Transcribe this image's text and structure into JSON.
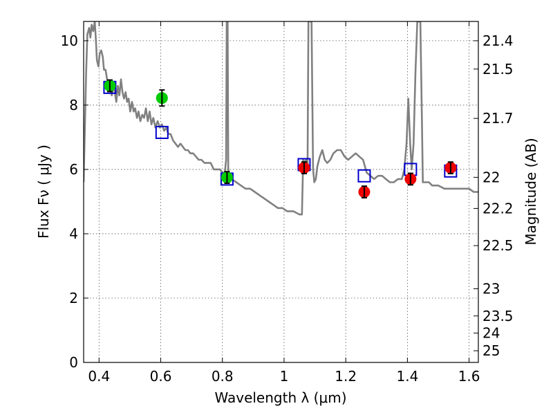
{
  "chart_data": {
    "type": "scatter",
    "xlabel": "Wavelength  λ (μm)",
    "ylabel": "Flux  Fν  ( μJy )",
    "ylabel_right": "Magnitude (AB)",
    "xlim": [
      0.35,
      1.63
    ],
    "ylim": [
      0,
      10.6
    ],
    "grid": true,
    "x_ticks": [
      "0.4",
      "0.6",
      "0.8",
      "1",
      "1.2",
      "1.4",
      "1.6"
    ],
    "x_tick_values": [
      0.4,
      0.6,
      0.8,
      1.0,
      1.2,
      1.4,
      1.6
    ],
    "y_ticks": [
      "0",
      "2",
      "4",
      "6",
      "8",
      "10"
    ],
    "y_tick_values": [
      0,
      2,
      4,
      6,
      8,
      10
    ],
    "mag_ticks": [
      "21.4",
      "21.5",
      "21.7",
      "22",
      "22.2",
      "22.5",
      "23",
      "23.5",
      "24",
      "25"
    ],
    "mag_tick_values": [
      21.4,
      21.5,
      21.7,
      22.0,
      22.2,
      22.5,
      23.0,
      23.5,
      24.0,
      25.0
    ],
    "model_line": {
      "color": "#808080",
      "points": [
        [
          0.35,
          5.6
        ],
        [
          0.358,
          9.0
        ],
        [
          0.362,
          10.2
        ],
        [
          0.368,
          10.4
        ],
        [
          0.372,
          10.1
        ],
        [
          0.376,
          10.5
        ],
        [
          0.381,
          10.3
        ],
        [
          0.386,
          10.6
        ],
        [
          0.39,
          10.0
        ],
        [
          0.393,
          9.4
        ],
        [
          0.398,
          9.2
        ],
        [
          0.402,
          9.6
        ],
        [
          0.407,
          9.7
        ],
        [
          0.412,
          9.5
        ],
        [
          0.416,
          9.1
        ],
        [
          0.421,
          9.1
        ],
        [
          0.426,
          8.8
        ],
        [
          0.431,
          8.5
        ],
        [
          0.436,
          8.7
        ],
        [
          0.441,
          8.3
        ],
        [
          0.446,
          8.6
        ],
        [
          0.451,
          8.4
        ],
        [
          0.456,
          8.1
        ],
        [
          0.461,
          8.6
        ],
        [
          0.466,
          8.3
        ],
        [
          0.471,
          8.8
        ],
        [
          0.476,
          8.4
        ],
        [
          0.481,
          8.2
        ],
        [
          0.486,
          8.4
        ],
        [
          0.491,
          8.1
        ],
        [
          0.496,
          8.2
        ],
        [
          0.501,
          7.8
        ],
        [
          0.507,
          8.1
        ],
        [
          0.512,
          7.8
        ],
        [
          0.517,
          7.9
        ],
        [
          0.523,
          7.6
        ],
        [
          0.528,
          7.8
        ],
        [
          0.534,
          7.5
        ],
        [
          0.54,
          7.7
        ],
        [
          0.546,
          7.6
        ],
        [
          0.552,
          7.9
        ],
        [
          0.558,
          7.5
        ],
        [
          0.564,
          7.8
        ],
        [
          0.57,
          7.4
        ],
        [
          0.576,
          7.6
        ],
        [
          0.583,
          7.3
        ],
        [
          0.59,
          7.5
        ],
        [
          0.597,
          7.3
        ],
        [
          0.604,
          7.4
        ],
        [
          0.611,
          7.2
        ],
        [
          0.618,
          7.3
        ],
        [
          0.625,
          7.1
        ],
        [
          0.632,
          7.1
        ],
        [
          0.64,
          6.9
        ],
        [
          0.648,
          6.8
        ],
        [
          0.656,
          6.7
        ],
        [
          0.664,
          6.8
        ],
        [
          0.672,
          6.7
        ],
        [
          0.68,
          6.6
        ],
        [
          0.688,
          6.6
        ],
        [
          0.696,
          6.5
        ],
        [
          0.705,
          6.5
        ],
        [
          0.714,
          6.4
        ],
        [
          0.723,
          6.3
        ],
        [
          0.732,
          6.3
        ],
        [
          0.742,
          6.2
        ],
        [
          0.752,
          6.2
        ],
        [
          0.762,
          6.2
        ],
        [
          0.772,
          6.0
        ],
        [
          0.782,
          6.0
        ],
        [
          0.792,
          6.0
        ],
        [
          0.8,
          5.9
        ],
        [
          0.808,
          5.9
        ],
        [
          0.812,
          6.3
        ],
        [
          0.814,
          10.6
        ],
        [
          0.817,
          10.6
        ],
        [
          0.819,
          6.0
        ],
        [
          0.823,
          5.8
        ],
        [
          0.83,
          5.7
        ],
        [
          0.845,
          5.6
        ],
        [
          0.86,
          5.5
        ],
        [
          0.875,
          5.4
        ],
        [
          0.89,
          5.4
        ],
        [
          0.905,
          5.3
        ],
        [
          0.92,
          5.2
        ],
        [
          0.935,
          5.1
        ],
        [
          0.95,
          5.0
        ],
        [
          0.965,
          4.9
        ],
        [
          0.98,
          4.8
        ],
        [
          0.995,
          4.8
        ],
        [
          1.01,
          4.7
        ],
        [
          1.03,
          4.7
        ],
        [
          1.05,
          4.6
        ],
        [
          1.058,
          4.6
        ],
        [
          1.062,
          6.3
        ],
        [
          1.066,
          6.2
        ],
        [
          1.071,
          6.3
        ],
        [
          1.076,
          6.0
        ],
        [
          1.079,
          10.6
        ],
        [
          1.089,
          10.6
        ],
        [
          1.094,
          6.0
        ],
        [
          1.098,
          5.6
        ],
        [
          1.103,
          5.7
        ],
        [
          1.108,
          6.1
        ],
        [
          1.116,
          6.4
        ],
        [
          1.124,
          6.6
        ],
        [
          1.132,
          6.3
        ],
        [
          1.14,
          6.2
        ],
        [
          1.15,
          6.3
        ],
        [
          1.16,
          6.5
        ],
        [
          1.172,
          6.6
        ],
        [
          1.184,
          6.6
        ],
        [
          1.196,
          6.4
        ],
        [
          1.208,
          6.3
        ],
        [
          1.22,
          6.4
        ],
        [
          1.232,
          6.5
        ],
        [
          1.244,
          6.4
        ],
        [
          1.256,
          6.3
        ],
        [
          1.268,
          5.9
        ],
        [
          1.28,
          5.8
        ],
        [
          1.292,
          5.7
        ],
        [
          1.305,
          5.8
        ],
        [
          1.318,
          5.8
        ],
        [
          1.33,
          5.7
        ],
        [
          1.343,
          5.6
        ],
        [
          1.356,
          5.6
        ],
        [
          1.369,
          5.7
        ],
        [
          1.382,
          5.7
        ],
        [
          1.39,
          6.0
        ],
        [
          1.397,
          6.8
        ],
        [
          1.403,
          8.2
        ],
        [
          1.409,
          6.8
        ],
        [
          1.414,
          6.0
        ],
        [
          1.42,
          6.8
        ],
        [
          1.426,
          9.0
        ],
        [
          1.432,
          10.6
        ],
        [
          1.442,
          10.6
        ],
        [
          1.447,
          7.5
        ],
        [
          1.45,
          5.6
        ],
        [
          1.46,
          5.6
        ],
        [
          1.47,
          5.6
        ],
        [
          1.48,
          5.5
        ],
        [
          1.5,
          5.5
        ],
        [
          1.52,
          5.4
        ],
        [
          1.54,
          5.4
        ],
        [
          1.56,
          5.4
        ],
        [
          1.58,
          5.4
        ],
        [
          1.6,
          5.4
        ],
        [
          1.615,
          5.3
        ],
        [
          1.63,
          5.3
        ]
      ]
    },
    "model_fluxes": {
      "color": "#0000cc",
      "points": [
        [
          0.435,
          8.55
        ],
        [
          0.604,
          7.15
        ],
        [
          0.815,
          5.7
        ],
        [
          1.065,
          6.15
        ],
        [
          1.26,
          5.8
        ],
        [
          1.41,
          6.0
        ],
        [
          1.54,
          5.95
        ]
      ]
    },
    "series": [
      {
        "color": "#00cc00",
        "points": [
          {
            "x": 0.435,
            "y": 8.6,
            "err": 0.18
          },
          {
            "x": 0.604,
            "y": 8.22,
            "err": 0.25
          },
          {
            "x": 0.815,
            "y": 5.75,
            "err": 0.18
          }
        ]
      },
      {
        "color": "#ee0000",
        "points": [
          {
            "x": 1.065,
            "y": 6.05,
            "err": 0.18
          },
          {
            "x": 1.26,
            "y": 5.3,
            "err": 0.18
          },
          {
            "x": 1.41,
            "y": 5.7,
            "err": 0.18
          },
          {
            "x": 1.54,
            "y": 6.05,
            "err": 0.18
          }
        ]
      }
    ]
  }
}
